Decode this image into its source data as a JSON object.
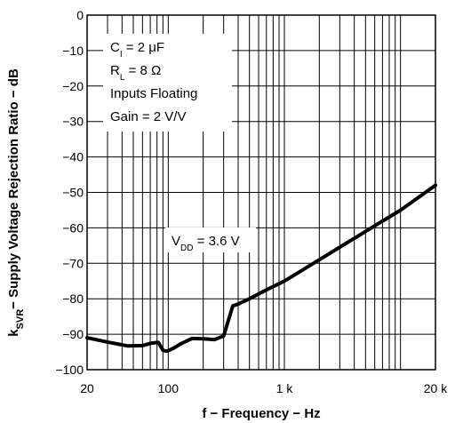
{
  "chart_data": {
    "type": "line",
    "xlabel": "f − Frequency − Hz",
    "ylabel_main": "k",
    "ylabel_sub": "SVR",
    "ylabel_rest": "− Supply Voltage Rejection Ratio − dB",
    "x_scale": "log",
    "xlim": [
      20,
      20000
    ],
    "ylim": [
      -100,
      0
    ],
    "grid": true,
    "x_tick_values": [
      20,
      100,
      1000,
      20000
    ],
    "x_tick_labels": [
      "20",
      "100",
      "1 k",
      "20 k"
    ],
    "y_tick_values": [
      0,
      -10,
      -20,
      -30,
      -40,
      -50,
      -60,
      -70,
      -80,
      -90,
      -100
    ],
    "y_tick_labels": [
      "0",
      "−10",
      "−20",
      "−30",
      "−40",
      "−50",
      "−60",
      "−70",
      "−80",
      "−90",
      "−100"
    ],
    "conditions": [
      {
        "main": "C",
        "sub": "I",
        "rest": " = 2 μF"
      },
      {
        "main": "R",
        "sub": "L",
        "rest": " = 8 Ω"
      },
      {
        "main": "Inputs Floating",
        "sub": "",
        "rest": ""
      },
      {
        "main": "Gain = 2 V/V",
        "sub": "",
        "rest": ""
      }
    ],
    "series_label": {
      "main": "V",
      "sub": "DD",
      "rest": " = 3.6 V"
    },
    "series": [
      {
        "name": "",
        "x": [
          20,
          30,
          45,
          60,
          72,
          82,
          90,
          97,
          110,
          130,
          160,
          200,
          250,
          300,
          330,
          360,
          400,
          500,
          700,
          1000,
          2000,
          5000,
          10000,
          20000
        ],
        "values": [
          -91,
          -92.2,
          -93.3,
          -93.2,
          -92.5,
          -92.3,
          -94.5,
          -94.8,
          -94,
          -92.6,
          -91.2,
          -91.3,
          -91.5,
          -90.5,
          -86,
          -82,
          -81.5,
          -80,
          -77.5,
          -75,
          -69,
          -61,
          -55,
          -48
        ]
      }
    ]
  }
}
